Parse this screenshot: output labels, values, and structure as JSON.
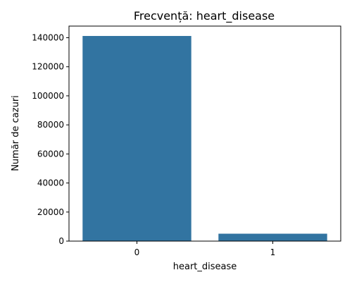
{
  "chart_data": {
    "type": "bar",
    "title": "Frecvență: heart_disease",
    "xlabel": "heart_disease",
    "ylabel": "Număr de cazuri",
    "categories": [
      "0",
      "1"
    ],
    "values": [
      141200,
      5100
    ],
    "ylim": [
      0,
      148000
    ],
    "yticks": [
      0,
      20000,
      40000,
      60000,
      80000,
      100000,
      120000,
      140000
    ],
    "ytick_labels": [
      "0",
      "20000",
      "40000",
      "60000",
      "80000",
      "100000",
      "120000",
      "140000"
    ],
    "bar_color": "#3274a1",
    "grid": false,
    "legend": "none"
  }
}
